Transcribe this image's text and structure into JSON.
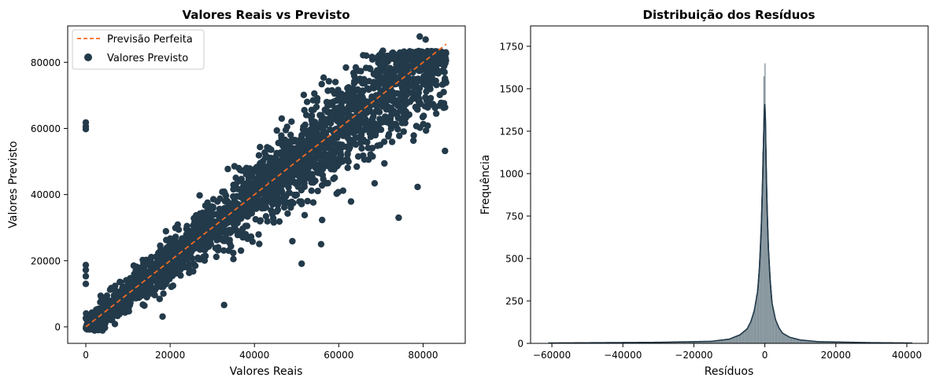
{
  "figure": {
    "colors": {
      "scatter": "#233a4a",
      "perfect_line": "#f26b21",
      "hist_fill": "#6f8089",
      "kde_line": "#233a4a"
    }
  },
  "chart_data": [
    {
      "type": "scatter",
      "title": "Valores Reais vs Previsto",
      "xlabel": "Valores Reais",
      "ylabel": "Valores Previsto",
      "xlim": [
        -4300,
        90000
      ],
      "ylim": [
        -5000,
        91000
      ],
      "xticks": [
        0,
        20000,
        40000,
        60000,
        80000
      ],
      "yticks": [
        0,
        20000,
        40000,
        60000,
        80000
      ],
      "legend": {
        "placement": "top-left",
        "entries": [
          {
            "label": "Previsão Perfeita",
            "kind": "dashed-line"
          },
          {
            "label": "Valores Previsto",
            "kind": "marker"
          }
        ]
      },
      "series": [
        {
          "name": "Previsão Perfeita",
          "kind": "line",
          "x": [
            0,
            85500
          ],
          "y": [
            0,
            85500
          ]
        },
        {
          "name": "Valores Previsto",
          "kind": "points",
          "trend": "clustered around y = x, spread widening with magnitude",
          "outliers": [
            {
              "x": 0,
              "y": 61800
            },
            {
              "x": 0,
              "y": 60600
            },
            {
              "x": 0,
              "y": 59800
            },
            {
              "x": 0,
              "y": 18700
            },
            {
              "x": 0,
              "y": 17200
            },
            {
              "x": 0,
              "y": 15300
            },
            {
              "x": 0,
              "y": 13000
            },
            {
              "x": 32800,
              "y": 6600
            },
            {
              "x": 18200,
              "y": 3100
            },
            {
              "x": 74200,
              "y": 33000
            },
            {
              "x": 78700,
              "y": 42300
            },
            {
              "x": 79200,
              "y": 87800
            },
            {
              "x": 80600,
              "y": 86900
            },
            {
              "x": 85200,
              "y": 53200
            },
            {
              "x": 55800,
              "y": 25000
            },
            {
              "x": 49000,
              "y": 25900
            },
            {
              "x": 51200,
              "y": 19100
            },
            {
              "x": 62900,
              "y": 37900
            },
            {
              "x": 68500,
              "y": 43400
            },
            {
              "x": 35000,
              "y": 20500
            }
          ]
        }
      ]
    },
    {
      "type": "bar",
      "subtype": "histogram_with_kde",
      "title": "Distribuição dos Resíduos",
      "xlabel": "Resíduos",
      "ylabel": "Frequência",
      "xlim": [
        -66000,
        46000
      ],
      "ylim": [
        0,
        1870
      ],
      "xticks": [
        -60000,
        -40000,
        -20000,
        0,
        20000,
        40000
      ],
      "yticks": [
        0,
        250,
        500,
        750,
        1000,
        1250,
        1500,
        1750
      ],
      "series": [
        {
          "name": "histogram",
          "x": [
            -61000,
            -30000,
            -15000,
            -10000,
            -7000,
            -5000,
            -4000,
            -3000,
            -2000,
            -1500,
            -1000,
            -600,
            -300,
            -150,
            0,
            150,
            300,
            600,
            1000,
            1500,
            2000,
            3000,
            4000,
            5000,
            7000,
            10000,
            15000,
            30000,
            41500
          ],
          "y": [
            5,
            8,
            14,
            28,
            55,
            90,
            130,
            200,
            330,
            480,
            720,
            1060,
            1480,
            1760,
            1740,
            1470,
            1200,
            870,
            580,
            380,
            240,
            140,
            90,
            60,
            38,
            22,
            12,
            6,
            4
          ]
        },
        {
          "name": "kde",
          "x": [
            -61000,
            -30000,
            -15000,
            -10000,
            -7000,
            -5000,
            -4000,
            -3000,
            -2000,
            -1500,
            -1000,
            -600,
            -300,
            -150,
            0,
            150,
            300,
            600,
            1000,
            1500,
            2000,
            3000,
            4000,
            5000,
            7000,
            10000,
            15000,
            30000,
            41500
          ],
          "y": [
            2,
            6,
            12,
            25,
            50,
            85,
            125,
            190,
            310,
            450,
            680,
            980,
            1250,
            1370,
            1410,
            1330,
            1120,
            820,
            560,
            370,
            240,
            140,
            90,
            60,
            36,
            20,
            10,
            4,
            2
          ]
        }
      ]
    }
  ]
}
